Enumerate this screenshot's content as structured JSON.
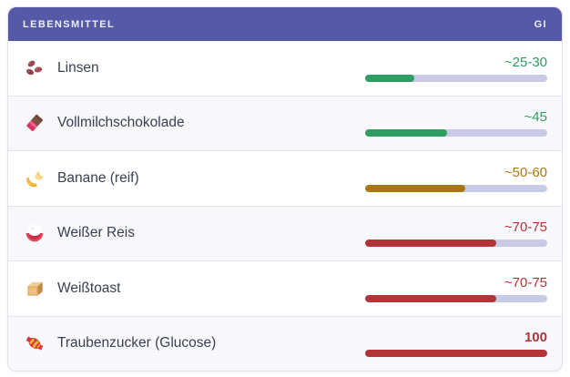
{
  "header": {
    "col_food": "LEBENSMITTEL",
    "col_gi": "GI"
  },
  "colors": {
    "header_bg": "#5659a7",
    "header_text": "#efeefb",
    "track": "#c9cbe6",
    "green": "#2e9d61",
    "amber": "#a8770f",
    "red": "#b33338",
    "row_alt_bg": "#f8f8fc",
    "divider": "#e4e4ee",
    "label_text": "#394050"
  },
  "rows": [
    {
      "label": "Linsen",
      "icon": "beans-icon",
      "value": "~25-30",
      "percent": 27,
      "level": "green",
      "bold": false
    },
    {
      "label": "Vollmilchschokolade",
      "icon": "chocolate-icon",
      "value": "~45",
      "percent": 45,
      "level": "green",
      "bold": false
    },
    {
      "label": "Banane (reif)",
      "icon": "banana-icon",
      "value": "~50-60",
      "percent": 55,
      "level": "amber",
      "bold": false
    },
    {
      "label": "Weißer Reis",
      "icon": "rice-icon",
      "value": "~70-75",
      "percent": 72,
      "level": "red",
      "bold": false
    },
    {
      "label": "Weißtoast",
      "icon": "toast-icon",
      "value": "~70-75",
      "percent": 72,
      "level": "red",
      "bold": false
    },
    {
      "label": "Traubenzucker (Glucose)",
      "icon": "candy-icon",
      "value": "100",
      "percent": 100,
      "level": "red",
      "bold": true
    }
  ],
  "chart_data": {
    "type": "bar",
    "orientation": "horizontal",
    "title": "",
    "xlabel": "GI",
    "ylabel": "Lebensmittel",
    "xlim": [
      0,
      100
    ],
    "grid": false,
    "legend": false,
    "categories": [
      "Linsen",
      "Vollmilchschokolade",
      "Banane (reif)",
      "Weißer Reis",
      "Weißtoast",
      "Traubenzucker (Glucose)"
    ],
    "values": [
      27.5,
      45,
      55,
      72.5,
      72.5,
      100
    ],
    "value_labels": [
      "~25-30",
      "~45",
      "~50-60",
      "~70-75",
      "~70-75",
      "100"
    ],
    "bar_colors": [
      "#2e9d61",
      "#2e9d61",
      "#a8770f",
      "#b33338",
      "#b33338",
      "#b33338"
    ]
  }
}
